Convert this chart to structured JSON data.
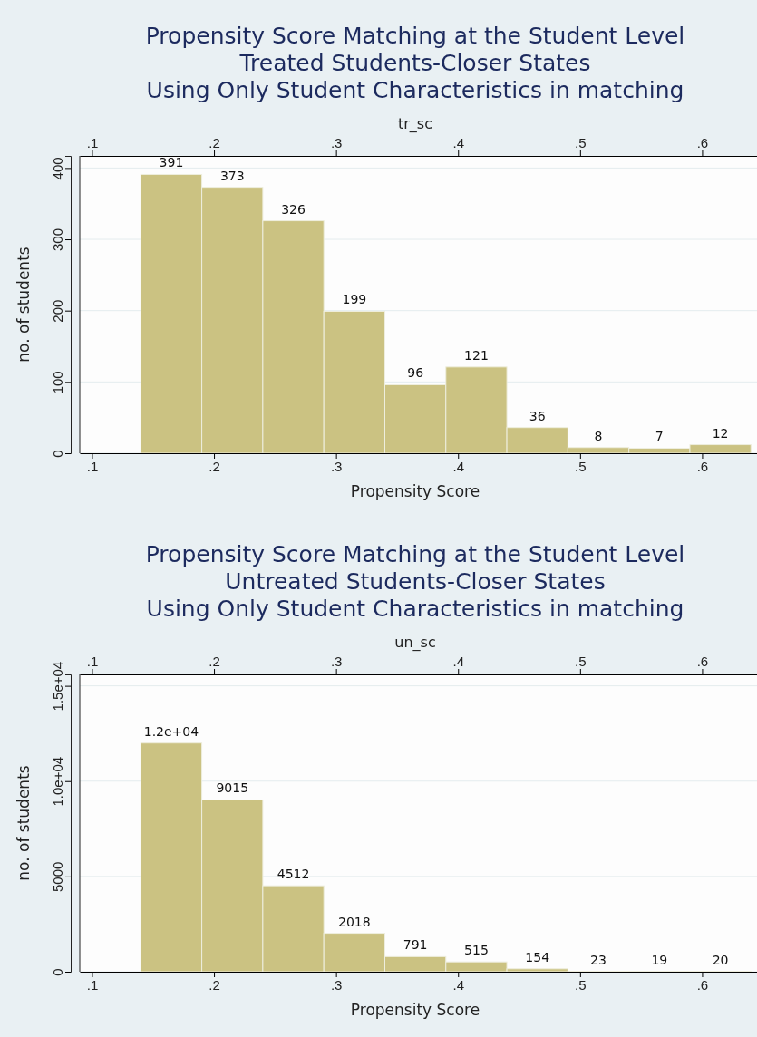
{
  "chart_data": [
    {
      "type": "histogram",
      "title": "Propensity Score Matching at the Student Level",
      "subtitle": "Treated Students-Closer States\nUsing Only Student Characteristics in matching",
      "xlabel": "Propensity Score",
      "x2label": "tr_sc",
      "ylabel": "no. of students",
      "color": "#cbc282",
      "bins": [
        0.14,
        0.19,
        0.24,
        0.29,
        0.34,
        0.39,
        0.44,
        0.49,
        0.54,
        0.59,
        0.64
      ],
      "values": [
        391,
        373,
        326,
        199,
        96,
        121,
        36,
        8,
        7,
        12
      ],
      "data_labels": true,
      "grid": "y",
      "xlim": [
        0.09,
        0.645
      ],
      "xticks": [
        {
          "value": 0.1,
          "label": ".1"
        },
        {
          "value": 0.2,
          "label": ".2"
        },
        {
          "value": 0.3,
          "label": ".3"
        },
        {
          "value": 0.4,
          "label": ".4"
        },
        {
          "value": 0.5,
          "label": ".5"
        },
        {
          "value": 0.6,
          "label": ".6"
        }
      ],
      "x2lim": [
        0.09,
        0.645
      ],
      "x2ticks": [
        {
          "value": 0.1,
          "label": ".1"
        },
        {
          "value": 0.2,
          "label": ".2"
        },
        {
          "value": 0.3,
          "label": ".3"
        },
        {
          "value": 0.4,
          "label": ".4"
        },
        {
          "value": 0.5,
          "label": ".5"
        },
        {
          "value": 0.6,
          "label": ".6"
        }
      ],
      "ylim": [
        0,
        417
      ],
      "yticks": [
        0,
        100,
        200,
        300,
        400
      ]
    },
    {
      "type": "histogram",
      "title": "Propensity Score Matching at the Student Level",
      "subtitle": "Untreated Students-Closer States\nUsing Only Student Characteristics in matching",
      "xlabel": "Propensity Score",
      "x2label": "un_sc",
      "ylabel": "no. of students",
      "color": "#cbc282",
      "bins": [
        0.14,
        0.19,
        0.24,
        0.29,
        0.34,
        0.39,
        0.44,
        0.49,
        0.54,
        0.59,
        0.64
      ],
      "values": [
        12000,
        9015,
        4512,
        2018,
        791,
        515,
        154,
        23,
        19,
        20
      ],
      "value_labels": [
        "1.2e+04",
        "9015",
        "4512",
        "2018",
        "791",
        "515",
        "154",
        "23",
        "19",
        "20"
      ],
      "grid": "y",
      "xlim": [
        0.09,
        0.645
      ],
      "xticks": [
        {
          "value": 0.1,
          "label": ".1"
        },
        {
          "value": 0.2,
          "label": ".2"
        },
        {
          "value": 0.3,
          "label": ".3"
        },
        {
          "value": 0.4,
          "label": ".4"
        },
        {
          "value": 0.5,
          "label": ".5"
        },
        {
          "value": 0.6,
          "label": ".6"
        }
      ],
      "x2lim": [
        0.09,
        0.645
      ],
      "x2ticks": [
        {
          "value": 0.1,
          "label": ".1"
        },
        {
          "value": 0.2,
          "label": ".2"
        },
        {
          "value": 0.3,
          "label": ".3"
        },
        {
          "value": 0.4,
          "label": ".4"
        },
        {
          "value": 0.5,
          "label": ".5"
        },
        {
          "value": 0.6,
          "label": ".6"
        }
      ],
      "ylim": [
        0,
        15600
      ],
      "yticks": [
        0,
        5000,
        {
          "value": 10000,
          "label": "1.0e+04"
        },
        {
          "value": 15000,
          "label": "1.5e+04"
        }
      ]
    }
  ]
}
